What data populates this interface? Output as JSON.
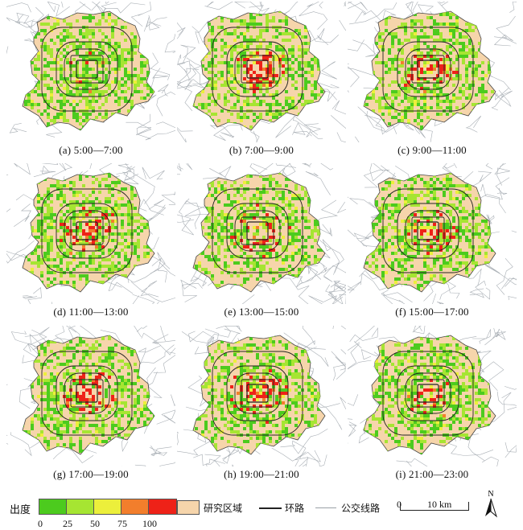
{
  "panels": [
    {
      "caption": "(a) 5:00—7:00",
      "intensity": 0.15
    },
    {
      "caption": "(b) 7:00—9:00",
      "intensity": 0.95
    },
    {
      "caption": "(c) 9:00—11:00",
      "intensity": 0.75
    },
    {
      "caption": "(d) 11:00—13:00",
      "intensity": 0.7
    },
    {
      "caption": "(e) 13:00—15:00",
      "intensity": 0.65
    },
    {
      "caption": "(f) 15:00—17:00",
      "intensity": 0.7
    },
    {
      "caption": "(g) 17:00—19:00",
      "intensity": 0.9
    },
    {
      "caption": "(h) 19:00—21:00",
      "intensity": 0.8
    },
    {
      "caption": "(i) 21:00—23:00",
      "intensity": 0.5
    }
  ],
  "legend": {
    "title": "出度",
    "ticks": [
      "0",
      "25",
      "50",
      "75",
      "100"
    ],
    "colors": [
      "#4ccb1e",
      "#a6e532",
      "#ecef3b",
      "#f27e2c",
      "#ee2218"
    ],
    "study_area": "研究区域",
    "study_area_color": "#f6d5ab",
    "ring_road": "环路",
    "bus_line": "公交线路",
    "scale_zero": "0",
    "scale_ten": "10 km",
    "north": "N"
  }
}
